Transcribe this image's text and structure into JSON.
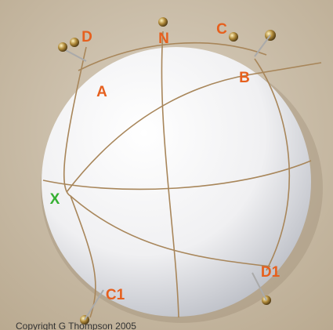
{
  "labels": [
    "D",
    "N",
    "C",
    "A",
    "B",
    "X",
    "D1",
    "C1"
  ],
  "copyright": "Copyright G Thompson 2005"
}
